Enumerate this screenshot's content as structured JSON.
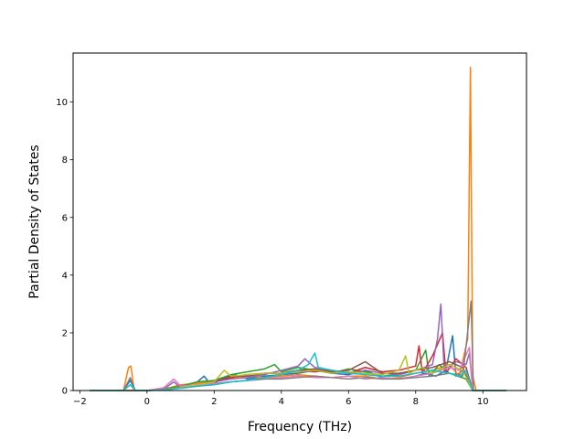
{
  "chart_data": {
    "type": "line",
    "title": "",
    "xlabel": "Frequency (THz)",
    "ylabel": "Partial Density of States",
    "xlim": [
      -2.2,
      11.3
    ],
    "ylim": [
      0,
      11.7
    ],
    "xticks": [
      -2,
      0,
      2,
      4,
      6,
      8,
      10
    ],
    "yticks": [
      0,
      2,
      4,
      6,
      8,
      10
    ],
    "x_tick_labels": [
      "−2",
      "0",
      "2",
      "4",
      "6",
      "8",
      "10"
    ],
    "y_tick_labels": [
      "0",
      "2",
      "4",
      "6",
      "8",
      "10"
    ],
    "grid": false,
    "legend": "none",
    "series_count": 10,
    "colors": [
      "#1f77b4",
      "#ff7f0e",
      "#2ca02c",
      "#d62728",
      "#9467bd",
      "#8c564b",
      "#e377c2",
      "#7f7f7f",
      "#bcbd22",
      "#17becf"
    ],
    "series": [
      {
        "color": "#1f77b4",
        "points": [
          [
            -1.7,
            0
          ],
          [
            -0.7,
            0
          ],
          [
            -0.5,
            0.35
          ],
          [
            -0.35,
            0
          ],
          [
            0,
            0
          ],
          [
            0.5,
            0.05
          ],
          [
            1,
            0.15
          ],
          [
            1.5,
            0.3
          ],
          [
            1.7,
            0.5
          ],
          [
            1.9,
            0.2
          ],
          [
            2.3,
            0.45
          ],
          [
            2.6,
            0.55
          ],
          [
            3,
            0.4
          ],
          [
            3.5,
            0.5
          ],
          [
            4,
            0.55
          ],
          [
            4.5,
            0.6
          ],
          [
            5,
            0.7
          ],
          [
            5.5,
            0.6
          ],
          [
            6,
            0.55
          ],
          [
            6.5,
            0.7
          ],
          [
            7,
            0.45
          ],
          [
            7.5,
            0.4
          ],
          [
            8,
            0.5
          ],
          [
            8.3,
            0.6
          ],
          [
            8.6,
            0.5
          ],
          [
            8.9,
            0.7
          ],
          [
            9.1,
            1.9
          ],
          [
            9.2,
            0.5
          ],
          [
            9.4,
            0.7
          ],
          [
            9.6,
            0.3
          ],
          [
            9.7,
            0
          ],
          [
            10.7,
            0
          ]
        ]
      },
      {
        "color": "#ff7f0e",
        "points": [
          [
            -1.7,
            0
          ],
          [
            -0.7,
            0
          ],
          [
            -0.55,
            0.8
          ],
          [
            -0.48,
            0.85
          ],
          [
            -0.38,
            0
          ],
          [
            0,
            0
          ],
          [
            0.5,
            0.05
          ],
          [
            1,
            0.2
          ],
          [
            1.5,
            0.25
          ],
          [
            2,
            0.35
          ],
          [
            2.5,
            0.45
          ],
          [
            3,
            0.5
          ],
          [
            3.5,
            0.45
          ],
          [
            4,
            0.5
          ],
          [
            4.5,
            0.55
          ],
          [
            5,
            0.5
          ],
          [
            5.5,
            0.45
          ],
          [
            6,
            0.5
          ],
          [
            6.5,
            0.5
          ],
          [
            7,
            0.4
          ],
          [
            7.5,
            0.45
          ],
          [
            8,
            0.6
          ],
          [
            8.5,
            0.7
          ],
          [
            9,
            0.9
          ],
          [
            9.3,
            0.5
          ],
          [
            9.55,
            1.8
          ],
          [
            9.63,
            11.2
          ],
          [
            9.7,
            0.5
          ],
          [
            9.8,
            0
          ],
          [
            10.7,
            0
          ]
        ]
      },
      {
        "color": "#2ca02c",
        "points": [
          [
            -1.7,
            0
          ],
          [
            0,
            0
          ],
          [
            0.5,
            0.05
          ],
          [
            1,
            0.15
          ],
          [
            1.5,
            0.3
          ],
          [
            2,
            0.35
          ],
          [
            2.5,
            0.55
          ],
          [
            3,
            0.65
          ],
          [
            3.5,
            0.75
          ],
          [
            3.8,
            0.9
          ],
          [
            4,
            0.65
          ],
          [
            4.5,
            0.8
          ],
          [
            5,
            0.7
          ],
          [
            5.5,
            0.6
          ],
          [
            6,
            0.75
          ],
          [
            6.5,
            0.65
          ],
          [
            7,
            0.5
          ],
          [
            7.5,
            0.55
          ],
          [
            8,
            0.7
          ],
          [
            8.3,
            1.4
          ],
          [
            8.4,
            0.5
          ],
          [
            8.7,
            0.9
          ],
          [
            9,
            0.6
          ],
          [
            9.5,
            0.4
          ],
          [
            9.7,
            0
          ],
          [
            10.7,
            0
          ]
        ]
      },
      {
        "color": "#d62728",
        "points": [
          [
            -1.7,
            0
          ],
          [
            0,
            0
          ],
          [
            0.5,
            0.03
          ],
          [
            1,
            0.1
          ],
          [
            1.5,
            0.2
          ],
          [
            2,
            0.3
          ],
          [
            2.5,
            0.45
          ],
          [
            3,
            0.55
          ],
          [
            3.5,
            0.6
          ],
          [
            4,
            0.6
          ],
          [
            4.5,
            0.7
          ],
          [
            5,
            0.65
          ],
          [
            5.5,
            0.7
          ],
          [
            6,
            0.6
          ],
          [
            6.5,
            0.8
          ],
          [
            7,
            0.65
          ],
          [
            7.5,
            0.7
          ],
          [
            8,
            0.85
          ],
          [
            8.1,
            1.55
          ],
          [
            8.2,
            0.6
          ],
          [
            8.5,
            1.2
          ],
          [
            8.8,
            2.0
          ],
          [
            8.9,
            0.6
          ],
          [
            9.2,
            1.1
          ],
          [
            9.5,
            0.8
          ],
          [
            9.7,
            0
          ],
          [
            10.7,
            0
          ]
        ]
      },
      {
        "color": "#9467bd",
        "points": [
          [
            -1.7,
            0
          ],
          [
            0,
            0
          ],
          [
            0.5,
            0.05
          ],
          [
            0.8,
            0.3
          ],
          [
            1,
            0.1
          ],
          [
            1.5,
            0.2
          ],
          [
            2,
            0.3
          ],
          [
            2.5,
            0.4
          ],
          [
            3,
            0.45
          ],
          [
            3.5,
            0.55
          ],
          [
            4,
            0.7
          ],
          [
            4.5,
            0.85
          ],
          [
            4.7,
            1.1
          ],
          [
            5,
            0.8
          ],
          [
            5.5,
            0.7
          ],
          [
            6,
            0.6
          ],
          [
            6.5,
            0.7
          ],
          [
            7,
            0.6
          ],
          [
            7.5,
            0.55
          ],
          [
            8,
            0.7
          ],
          [
            8.5,
            0.9
          ],
          [
            8.65,
            1.8
          ],
          [
            8.75,
            3.0
          ],
          [
            8.85,
            0.7
          ],
          [
            9.2,
            1.0
          ],
          [
            9.5,
            0.9
          ],
          [
            9.6,
            1.3
          ],
          [
            9.7,
            0
          ],
          [
            10.7,
            0
          ]
        ]
      },
      {
        "color": "#8c564b",
        "points": [
          [
            -1.7,
            0
          ],
          [
            0,
            0
          ],
          [
            0.5,
            0.02
          ],
          [
            1,
            0.1
          ],
          [
            1.5,
            0.2
          ],
          [
            2,
            0.3
          ],
          [
            2.5,
            0.5
          ],
          [
            3,
            0.5
          ],
          [
            3.5,
            0.6
          ],
          [
            4,
            0.6
          ],
          [
            4.5,
            0.7
          ],
          [
            5,
            0.75
          ],
          [
            5.5,
            0.65
          ],
          [
            6,
            0.7
          ],
          [
            6.5,
            1.0
          ],
          [
            7,
            0.6
          ],
          [
            7.5,
            0.6
          ],
          [
            8,
            0.7
          ],
          [
            8.5,
            0.8
          ],
          [
            9,
            1.0
          ],
          [
            9.4,
            0.8
          ],
          [
            9.7,
            0
          ],
          [
            10.7,
            0
          ]
        ]
      },
      {
        "color": "#e377c2",
        "points": [
          [
            -1.7,
            0
          ],
          [
            0,
            0
          ],
          [
            0.5,
            0.1
          ],
          [
            0.8,
            0.4
          ],
          [
            1,
            0.15
          ],
          [
            1.5,
            0.2
          ],
          [
            2,
            0.25
          ],
          [
            2.5,
            0.3
          ],
          [
            3,
            0.35
          ],
          [
            3.5,
            0.4
          ],
          [
            4,
            0.45
          ],
          [
            4.5,
            0.5
          ],
          [
            5,
            0.45
          ],
          [
            5.5,
            0.45
          ],
          [
            6,
            0.5
          ],
          [
            6.5,
            0.4
          ],
          [
            7,
            0.45
          ],
          [
            7.5,
            0.4
          ],
          [
            8,
            0.5
          ],
          [
            8.5,
            0.6
          ],
          [
            9,
            0.8
          ],
          [
            9.3,
            0.7
          ],
          [
            9.6,
            1.5
          ],
          [
            9.7,
            0
          ],
          [
            10.7,
            0
          ]
        ]
      },
      {
        "color": "#7f7f7f",
        "points": [
          [
            -1.7,
            0
          ],
          [
            -0.7,
            0
          ],
          [
            -0.5,
            0.45
          ],
          [
            -0.35,
            0
          ],
          [
            0,
            0
          ],
          [
            0.5,
            0.02
          ],
          [
            1,
            0.08
          ],
          [
            1.5,
            0.15
          ],
          [
            2,
            0.2
          ],
          [
            2.5,
            0.3
          ],
          [
            3,
            0.35
          ],
          [
            3.5,
            0.4
          ],
          [
            4,
            0.4
          ],
          [
            4.5,
            0.45
          ],
          [
            5,
            0.5
          ],
          [
            5.5,
            0.45
          ],
          [
            6,
            0.4
          ],
          [
            6.5,
            0.45
          ],
          [
            7,
            0.4
          ],
          [
            7.5,
            0.4
          ],
          [
            8,
            0.45
          ],
          [
            8.5,
            0.5
          ],
          [
            9,
            0.6
          ],
          [
            9.4,
            0.5
          ],
          [
            9.65,
            3.1
          ],
          [
            9.72,
            0
          ],
          [
            10.7,
            0
          ]
        ]
      },
      {
        "color": "#bcbd22",
        "points": [
          [
            -1.7,
            0
          ],
          [
            0,
            0
          ],
          [
            0.5,
            0.03
          ],
          [
            1,
            0.1
          ],
          [
            1.5,
            0.2
          ],
          [
            2,
            0.3
          ],
          [
            2.3,
            0.7
          ],
          [
            2.5,
            0.5
          ],
          [
            3,
            0.55
          ],
          [
            3.5,
            0.6
          ],
          [
            4,
            0.6
          ],
          [
            4.5,
            0.65
          ],
          [
            5,
            0.7
          ],
          [
            5.5,
            0.6
          ],
          [
            6,
            0.65
          ],
          [
            6.5,
            0.6
          ],
          [
            7,
            0.55
          ],
          [
            7.5,
            0.7
          ],
          [
            7.7,
            1.2
          ],
          [
            7.8,
            0.6
          ],
          [
            8.2,
            0.8
          ],
          [
            8.5,
            0.6
          ],
          [
            9,
            0.9
          ],
          [
            9.4,
            0.7
          ],
          [
            9.7,
            0
          ],
          [
            10.7,
            0
          ]
        ]
      },
      {
        "color": "#17becf",
        "points": [
          [
            -1.7,
            0
          ],
          [
            -0.7,
            0
          ],
          [
            -0.5,
            0.2
          ],
          [
            -0.35,
            0
          ],
          [
            0,
            0
          ],
          [
            0.5,
            0.02
          ],
          [
            1,
            0.08
          ],
          [
            1.5,
            0.15
          ],
          [
            2,
            0.2
          ],
          [
            2.5,
            0.3
          ],
          [
            3,
            0.35
          ],
          [
            3.5,
            0.45
          ],
          [
            4,
            0.55
          ],
          [
            4.5,
            0.7
          ],
          [
            4.8,
            0.9
          ],
          [
            5,
            1.3
          ],
          [
            5.1,
            0.8
          ],
          [
            5.5,
            0.7
          ],
          [
            6,
            0.6
          ],
          [
            6.5,
            0.55
          ],
          [
            7,
            0.5
          ],
          [
            7.5,
            0.5
          ],
          [
            8,
            0.6
          ],
          [
            8.5,
            0.7
          ],
          [
            9,
            0.6
          ],
          [
            9.3,
            0.5
          ],
          [
            9.5,
            0.7
          ],
          [
            9.7,
            0
          ],
          [
            10.7,
            0
          ]
        ]
      }
    ]
  }
}
